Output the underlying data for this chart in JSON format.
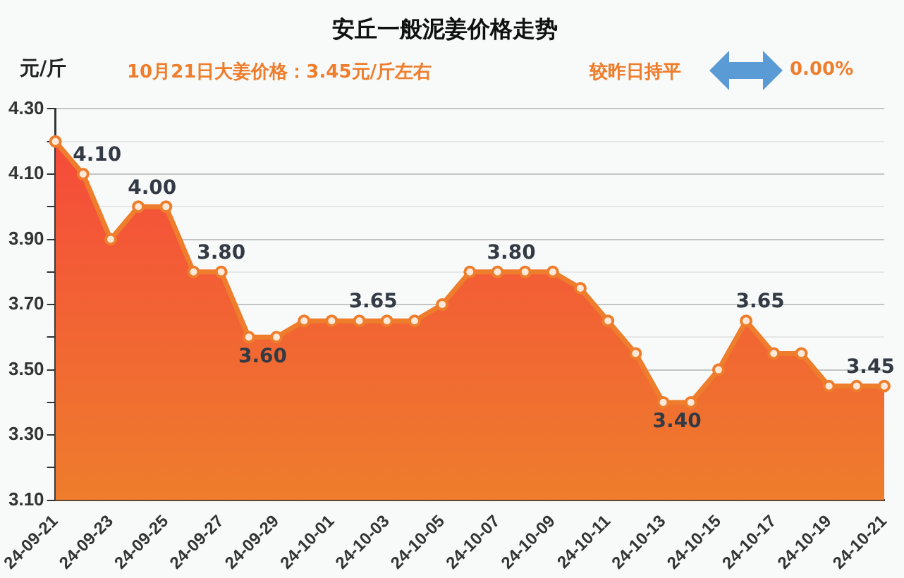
{
  "chart_data": {
    "type": "area",
    "title": "安丘一般泥姜价格走势",
    "ylabel": "元/斤",
    "annotations": [
      "10月21日大姜价格：3.45元/斤左右",
      "较昨日持平",
      "0.00%"
    ],
    "categories": [
      "24-09-21",
      null,
      "24-09-23",
      null,
      "24-09-25",
      null,
      "24-09-27",
      null,
      "24-09-29",
      null,
      "24-10-01",
      null,
      "24-10-03",
      null,
      "24-10-05",
      null,
      "24-10-07",
      null,
      "24-10-09",
      null,
      "24-10-11",
      null,
      "24-10-13",
      null,
      "24-10-15",
      null,
      "24-10-17",
      null,
      "24-10-19",
      null,
      "24-10-21"
    ],
    "series": [
      {
        "color": "#ee7d2c",
        "values": [
          4.2,
          4.1,
          3.9,
          4.0,
          4.0,
          3.8,
          3.8,
          3.6,
          3.6,
          3.65,
          3.65,
          3.65,
          3.65,
          3.65,
          3.7,
          3.8,
          3.8,
          3.8,
          3.8,
          3.75,
          3.65,
          3.55,
          3.4,
          3.4,
          3.5,
          3.65,
          3.55,
          3.55,
          3.45,
          3.45,
          3.45
        ],
        "value_labels": [
          null,
          "4.10",
          null,
          "4.00",
          null,
          "3.80",
          null,
          "3.60",
          null,
          null,
          null,
          "3.65",
          null,
          null,
          null,
          null,
          "3.80",
          null,
          null,
          null,
          null,
          null,
          "3.40",
          null,
          null,
          "3.65",
          null,
          null,
          null,
          "3.45",
          null
        ]
      }
    ],
    "ylim": [
      3.1,
      4.3
    ],
    "yticks": [
      {
        "value": 3.1,
        "label": "3.10"
      },
      {
        "value": 3.2,
        "label": null
      },
      {
        "value": 3.3,
        "label": "3.30"
      },
      {
        "value": 3.4,
        "label": null
      },
      {
        "value": 3.5,
        "label": "3.50"
      },
      {
        "value": 3.6,
        "label": null
      },
      {
        "value": 3.7,
        "label": "3.70"
      },
      {
        "value": 3.8,
        "label": null
      },
      {
        "value": 3.9,
        "label": "3.90"
      },
      {
        "value": 4.0,
        "label": null
      },
      {
        "value": 4.1,
        "label": "4.10"
      },
      {
        "value": 4.2,
        "label": null
      },
      {
        "value": 4.3,
        "label": "4.30"
      }
    ],
    "grid": "y",
    "legend": false,
    "marker": "circle",
    "line_style": "solid"
  }
}
